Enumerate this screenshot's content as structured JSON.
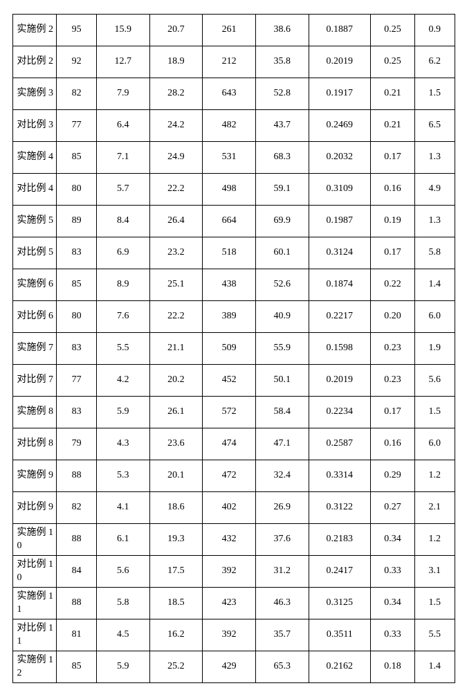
{
  "table": {
    "background_color": "#ffffff",
    "border_color": "#000000",
    "text_color": "#000000",
    "font_size": 14,
    "column_widths_pct": [
      10,
      9,
      12,
      12,
      12,
      12,
      14,
      10,
      9
    ],
    "rows": [
      {
        "label": "实施例 2",
        "values": [
          "95",
          "15.9",
          "20.7",
          "261",
          "38.6",
          "0.1887",
          "0.25",
          "0.9"
        ]
      },
      {
        "label": "对比例 2",
        "values": [
          "92",
          "12.7",
          "18.9",
          "212",
          "35.8",
          "0.2019",
          "0.25",
          "6.2"
        ]
      },
      {
        "label": "实施例 3",
        "values": [
          "82",
          "7.9",
          "28.2",
          "643",
          "52.8",
          "0.1917",
          "0.21",
          "1.5"
        ]
      },
      {
        "label": "对比例 3",
        "values": [
          "77",
          "6.4",
          "24.2",
          "482",
          "43.7",
          "0.2469",
          "0.21",
          "6.5"
        ]
      },
      {
        "label": "实施例 4",
        "values": [
          "85",
          "7.1",
          "24.9",
          "531",
          "68.3",
          "0.2032",
          "0.17",
          "1.3"
        ]
      },
      {
        "label": "对比例 4",
        "values": [
          "80",
          "5.7",
          "22.2",
          "498",
          "59.1",
          "0.3109",
          "0.16",
          "4.9"
        ]
      },
      {
        "label": "实施例 5",
        "values": [
          "89",
          "8.4",
          "26.4",
          "664",
          "69.9",
          "0.1987",
          "0.19",
          "1.3"
        ]
      },
      {
        "label": "对比例 5",
        "values": [
          "83",
          "6.9",
          "23.2",
          "518",
          "60.1",
          "0.3124",
          "0.17",
          "5.8"
        ]
      },
      {
        "label": "实施例 6",
        "values": [
          "85",
          "8.9",
          "25.1",
          "438",
          "52.6",
          "0.1874",
          "0.22",
          "1.4"
        ]
      },
      {
        "label": "对比例 6",
        "values": [
          "80",
          "7.6",
          "22.2",
          "389",
          "40.9",
          "0.2217",
          "0.20",
          "6.0"
        ]
      },
      {
        "label": "实施例 7",
        "values": [
          "83",
          "5.5",
          "21.1",
          "509",
          "55.9",
          "0.1598",
          "0.23",
          "1.9"
        ]
      },
      {
        "label": "对比例 7",
        "values": [
          "77",
          "4.2",
          "20.2",
          "452",
          "50.1",
          "0.2019",
          "0.23",
          "5.6"
        ]
      },
      {
        "label": "实施例 8",
        "values": [
          "83",
          "5.9",
          "26.1",
          "572",
          "58.4",
          "0.2234",
          "0.17",
          "1.5"
        ]
      },
      {
        "label": "对比例 8",
        "values": [
          "79",
          "4.3",
          "23.6",
          "474",
          "47.1",
          "0.2587",
          "0.16",
          "6.0"
        ]
      },
      {
        "label": "实施例 9",
        "values": [
          "88",
          "5.3",
          "20.1",
          "472",
          "32.4",
          "0.3314",
          "0.29",
          "1.2"
        ]
      },
      {
        "label": "对比例 9",
        "values": [
          "82",
          "4.1",
          "18.6",
          "402",
          "26.9",
          "0.3122",
          "0.27",
          "2.1"
        ]
      },
      {
        "label": "实施例 10",
        "values": [
          "88",
          "6.1",
          "19.3",
          "432",
          "37.6",
          "0.2183",
          "0.34",
          "1.2"
        ]
      },
      {
        "label": "对比例 10",
        "values": [
          "84",
          "5.6",
          "17.5",
          "392",
          "31.2",
          "0.2417",
          "0.33",
          "3.1"
        ]
      },
      {
        "label": "实施例 11",
        "values": [
          "88",
          "5.8",
          "18.5",
          "423",
          "46.3",
          "0.3125",
          "0.34",
          "1.5"
        ]
      },
      {
        "label": "对比例 11",
        "values": [
          "81",
          "4.5",
          "16.2",
          "392",
          "35.7",
          "0.3511",
          "0.33",
          "5.5"
        ]
      },
      {
        "label": "实施例 12",
        "values": [
          "85",
          "5.9",
          "25.2",
          "429",
          "65.3",
          "0.2162",
          "0.18",
          "1.4"
        ]
      }
    ]
  }
}
